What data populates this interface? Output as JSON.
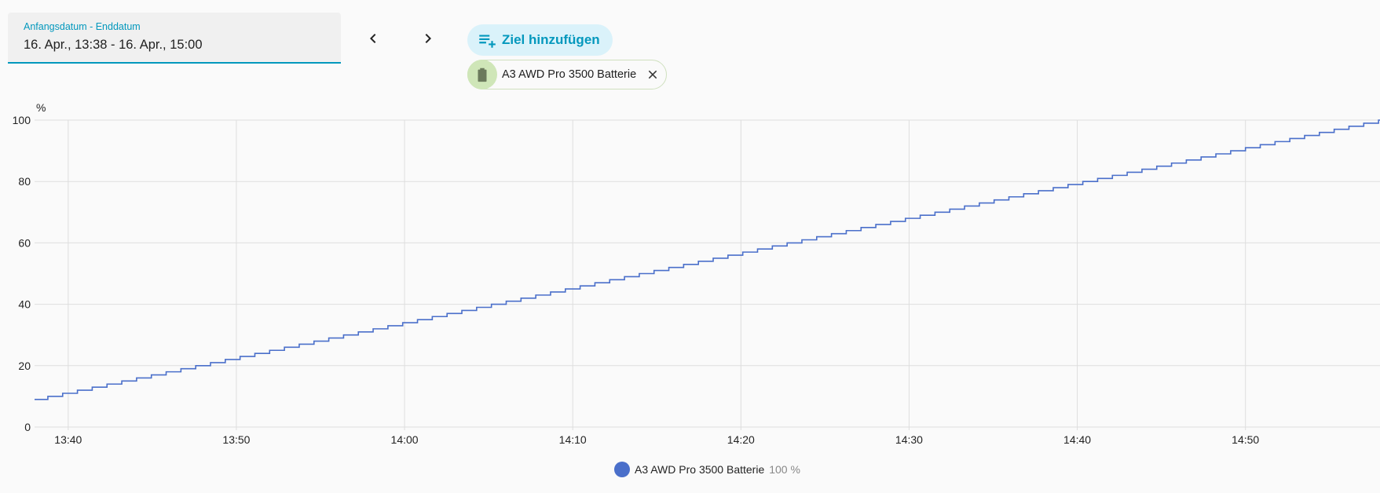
{
  "date_range": {
    "label": "Anfangsdatum - Enddatum",
    "value": "16. Apr., 13:38 - 16. Apr., 15:00"
  },
  "nav": {
    "prev_icon": "chevron-left-icon",
    "next_icon": "chevron-right-icon"
  },
  "add_target": {
    "label": "Ziel hinzufügen",
    "icon": "playlist-plus-icon"
  },
  "chip": {
    "label": "A3 AWD Pro 3500 Batterie",
    "icon": "battery-icon"
  },
  "colors": {
    "accent": "#0398bd",
    "series": "#4a6fca",
    "chip_avatar": "#cfe6b8",
    "battery": "#6b7a5c"
  },
  "legend": {
    "name": "A3 AWD Pro 3500 Batterie",
    "value": "100 %"
  },
  "chart_data": {
    "type": "line",
    "step": true,
    "ylabel": "%",
    "ylim": [
      0,
      100
    ],
    "yticks": [
      0,
      20,
      40,
      60,
      80,
      100
    ],
    "xlim": [
      "13:38",
      "14:58"
    ],
    "xticks": [
      "13:40",
      "13:50",
      "14:00",
      "14:10",
      "14:20",
      "14:30",
      "14:40",
      "14:50"
    ],
    "grid": true,
    "series": [
      {
        "name": "A3 AWD Pro 3500 Batterie",
        "color": "#4a6fca",
        "x": [
          "13:38",
          "14:58"
        ],
        "y": [
          9,
          100
        ]
      }
    ]
  }
}
